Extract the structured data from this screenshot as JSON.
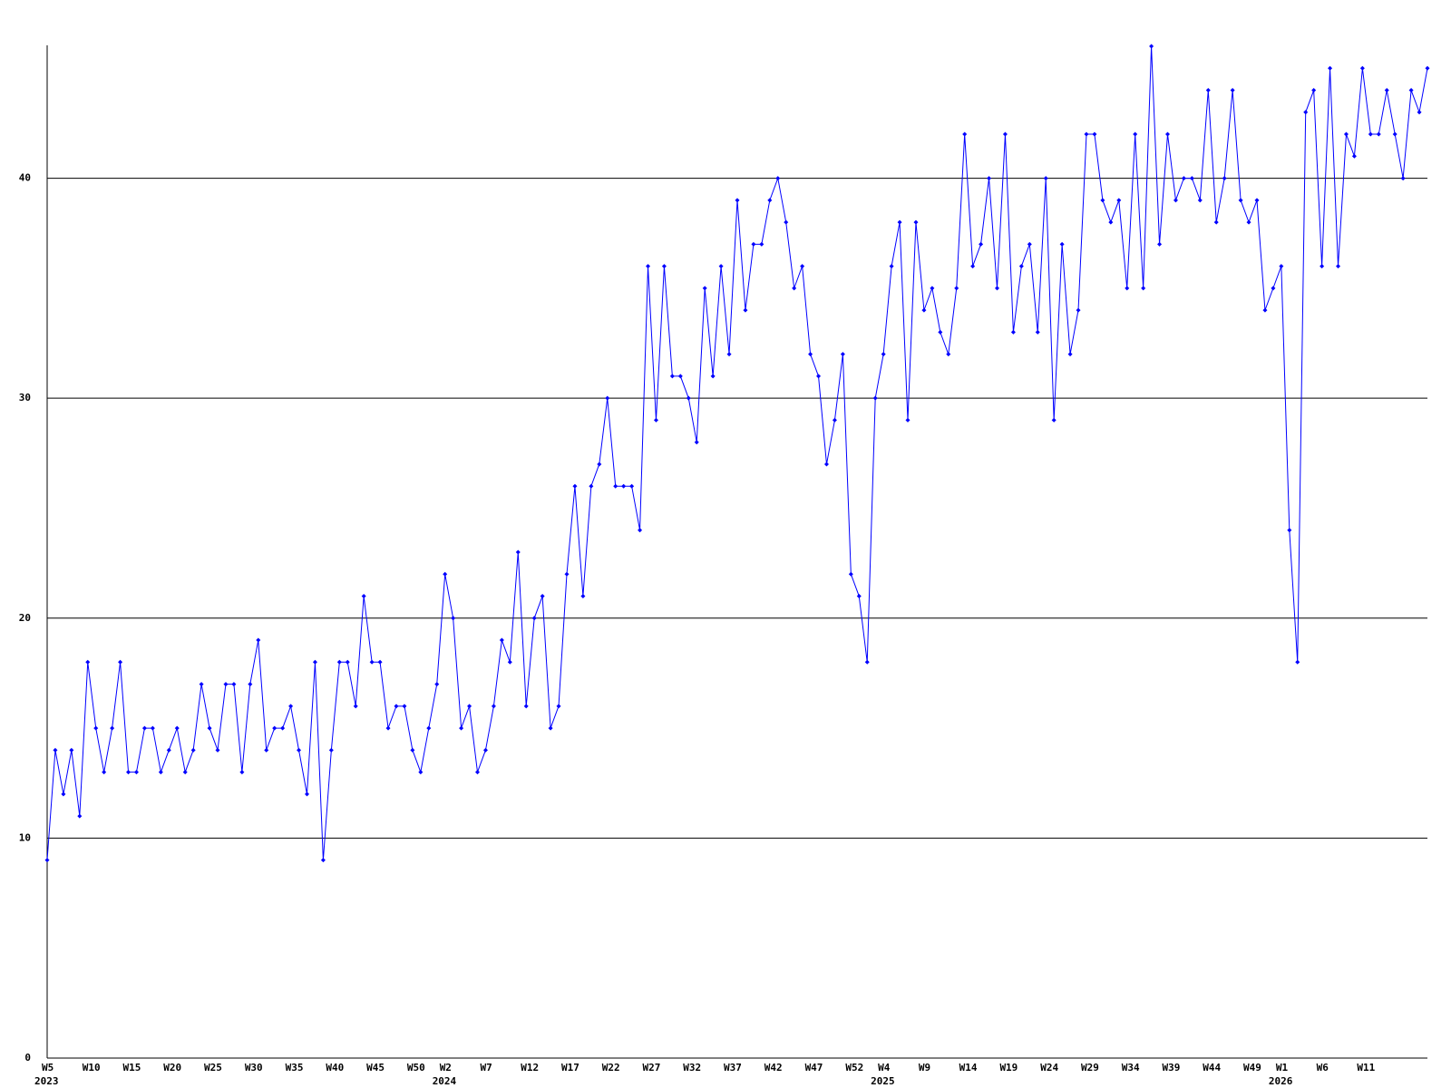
{
  "chart_data": {
    "type": "line",
    "categories": [
      "W5",
      null,
      null,
      null,
      null,
      "W10",
      null,
      null,
      null,
      null,
      "W15",
      null,
      null,
      null,
      null,
      "W20",
      null,
      null,
      null,
      null,
      "W25",
      null,
      null,
      null,
      null,
      "W30",
      null,
      null,
      null,
      null,
      "W35",
      null,
      null,
      null,
      null,
      "W40",
      null,
      null,
      null,
      null,
      "W45",
      null,
      null,
      null,
      null,
      "W50",
      null,
      null,
      null,
      "W2",
      null,
      null,
      null,
      null,
      "W7",
      null,
      null,
      null,
      null,
      "W12",
      null,
      null,
      null,
      null,
      "W17",
      null,
      null,
      null,
      null,
      "W22",
      null,
      null,
      null,
      null,
      "W27",
      null,
      null,
      null,
      null,
      "W32",
      null,
      null,
      null,
      null,
      "W37",
      null,
      null,
      null,
      null,
      "W42",
      null,
      null,
      null,
      null,
      "W47",
      null,
      null,
      null,
      null,
      "W52",
      null,
      null,
      null,
      "W4",
      null,
      null,
      null,
      null,
      "W9",
      null,
      null,
      null,
      null,
      "W14",
      null,
      null,
      null,
      null,
      "W19",
      null,
      null,
      null,
      null,
      "W24",
      null,
      null,
      null,
      null,
      "W29",
      null,
      null,
      null,
      null,
      "W34",
      null,
      null,
      null,
      null,
      "W39",
      null,
      null,
      null,
      null,
      "W44",
      null,
      null,
      null,
      null,
      "W49",
      null,
      null,
      null,
      "W1",
      null,
      null,
      null,
      null,
      "W6",
      null,
      null,
      null,
      null,
      "W11",
      null,
      null,
      null,
      null,
      null,
      null,
      null,
      null
    ],
    "category_years": [
      "2023",
      null,
      null,
      null,
      null,
      null,
      null,
      null,
      null,
      null,
      null,
      null,
      null,
      null,
      null,
      null,
      null,
      null,
      null,
      null,
      null,
      null,
      null,
      null,
      null,
      null,
      null,
      null,
      null,
      null,
      null,
      null,
      null,
      null,
      null,
      null,
      null,
      null,
      null,
      null,
      null,
      null,
      null,
      null,
      null,
      null,
      null,
      null,
      null,
      "2024",
      null,
      null,
      null,
      null,
      null,
      null,
      null,
      null,
      null,
      null,
      null,
      null,
      null,
      null,
      null,
      null,
      null,
      null,
      null,
      null,
      null,
      null,
      null,
      null,
      null,
      null,
      null,
      null,
      null,
      null,
      null,
      null,
      null,
      null,
      null,
      null,
      null,
      null,
      null,
      null,
      null,
      null,
      null,
      null,
      null,
      null,
      null,
      null,
      null,
      null,
      null,
      null,
      null,
      "2025",
      null,
      null,
      null,
      null,
      null,
      null,
      null,
      null,
      null,
      null,
      null,
      null,
      null,
      null,
      null,
      null,
      null,
      null,
      null,
      null,
      null,
      null,
      null,
      null,
      null,
      null,
      null,
      null,
      null,
      null,
      null,
      null,
      null,
      null,
      null,
      null,
      null,
      null,
      null,
      null,
      null,
      null,
      null,
      null,
      null,
      null,
      null,
      null,
      "2026",
      null,
      null,
      null,
      null,
      null,
      null,
      null,
      null,
      null,
      null,
      null,
      null,
      null,
      null,
      null,
      null,
      null,
      null
    ],
    "values": [
      9,
      14,
      12,
      14,
      11,
      18,
      15,
      13,
      15,
      18,
      13,
      13,
      15,
      15,
      13,
      14,
      15,
      13,
      14,
      17,
      15,
      14,
      17,
      17,
      13,
      17,
      19,
      14,
      15,
      15,
      16,
      14,
      12,
      18,
      9,
      14,
      18,
      18,
      16,
      21,
      18,
      18,
      15,
      16,
      16,
      14,
      13,
      15,
      17,
      22,
      20,
      15,
      16,
      13,
      14,
      16,
      19,
      18,
      23,
      16,
      20,
      21,
      15,
      16,
      22,
      26,
      21,
      26,
      27,
      30,
      26,
      26,
      26,
      24,
      36,
      29,
      36,
      31,
      31,
      30,
      28,
      35,
      31,
      36,
      32,
      39,
      34,
      37,
      37,
      39,
      40,
      38,
      35,
      36,
      32,
      31,
      27,
      29,
      32,
      22,
      21,
      18,
      30,
      32,
      36,
      38,
      29,
      38,
      34,
      35,
      33,
      32,
      35,
      42,
      36,
      37,
      40,
      35,
      42,
      33,
      36,
      37,
      33,
      40,
      29,
      37,
      32,
      34,
      42,
      42,
      39,
      38,
      39,
      35,
      42,
      35,
      46,
      37,
      42,
      39,
      40,
      40,
      39,
      44,
      38,
      40,
      44,
      39,
      38,
      39,
      34,
      35,
      36,
      24,
      18,
      43,
      44,
      36,
      45,
      36,
      42,
      41,
      45,
      42,
      42,
      44,
      42,
      40,
      44,
      43,
      45
    ],
    "color": "#0000ff",
    "ylim": [
      0,
      46
    ],
    "yticks": [
      0,
      10,
      20,
      30,
      40
    ],
    "grid": true
  }
}
